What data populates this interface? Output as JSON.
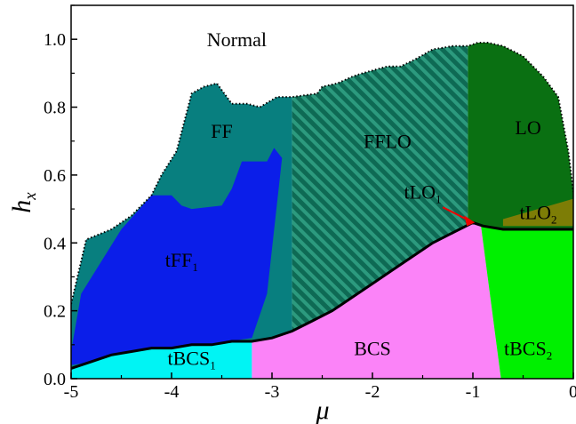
{
  "chart_data": {
    "type": "area",
    "title": "",
    "xlabel": "μ",
    "ylabel_main": "h",
    "ylabel_sub": "x",
    "xlim": [
      -5,
      0
    ],
    "ylim": [
      0,
      1.1
    ],
    "x_ticks": [
      -5,
      -4,
      -3,
      -2,
      -1,
      0
    ],
    "x_tick_labels": [
      "-5",
      "-4",
      "-3",
      "-2",
      "-1",
      "0"
    ],
    "y_ticks": [
      0,
      0.2,
      0.4,
      0.6,
      0.8,
      1.0
    ],
    "y_tick_labels": [
      "0.0",
      "0.2",
      "0.4",
      "0.6",
      "0.8",
      "1.0"
    ],
    "grid": false,
    "colors": {
      "FF": "#087f7f",
      "FFLO_fill": "#0e6a54",
      "FFLO_hatch": "#2c9a7e",
      "LO": "#0a7012",
      "tLO2": "#7d7d06",
      "tFF1": "#0b1ee9",
      "tBCS1": "#00f4f4",
      "BCS": "#fb83f8",
      "tBCS2": "#00f000",
      "tLO1_marker": "#ee0000",
      "boundary": "#000000"
    },
    "upper_boundary": {
      "style": "dotted",
      "x": [
        -5.0,
        -4.85,
        -4.6,
        -4.4,
        -4.2,
        -4.1,
        -3.95,
        -3.8,
        -3.68,
        -3.55,
        -3.4,
        -3.25,
        -3.12,
        -2.95,
        -2.8,
        -2.55,
        -2.5,
        -2.35,
        -2.2,
        -2.1,
        -1.85,
        -1.72,
        -1.58,
        -1.4,
        -1.2,
        -1.05,
        -0.95,
        -0.85,
        -0.7,
        -0.5,
        -0.3,
        -0.15,
        -0.05,
        0.0
      ],
      "y": [
        0.22,
        0.41,
        0.44,
        0.48,
        0.54,
        0.6,
        0.67,
        0.84,
        0.86,
        0.87,
        0.81,
        0.81,
        0.8,
        0.83,
        0.83,
        0.84,
        0.86,
        0.87,
        0.89,
        0.9,
        0.92,
        0.92,
        0.94,
        0.97,
        0.98,
        0.98,
        0.99,
        0.99,
        0.98,
        0.95,
        0.89,
        0.83,
        0.67,
        0.55
      ]
    },
    "lower_boundary": {
      "style": "solid",
      "x": [
        -5.0,
        -4.8,
        -4.6,
        -4.4,
        -4.2,
        -4.0,
        -3.8,
        -3.6,
        -3.4,
        -3.2,
        -3.0,
        -2.8,
        -2.6,
        -2.4,
        -2.2,
        -2.0,
        -1.8,
        -1.6,
        -1.4,
        -1.2,
        -1.0,
        -0.9,
        -0.7,
        -0.4,
        -0.2,
        0.0
      ],
      "y": [
        0.03,
        0.05,
        0.07,
        0.08,
        0.09,
        0.09,
        0.1,
        0.1,
        0.11,
        0.11,
        0.12,
        0.14,
        0.17,
        0.2,
        0.24,
        0.28,
        0.32,
        0.36,
        0.4,
        0.43,
        0.46,
        0.45,
        0.44,
        0.44,
        0.44,
        0.44
      ]
    },
    "regions": [
      {
        "label": "FF",
        "x": [
          -5.0,
          -2.8
        ]
      },
      {
        "label": "FFLO",
        "hatched": true,
        "x": [
          -2.8,
          -1.05
        ]
      },
      {
        "label": "LO",
        "x": [
          -1.05,
          0.0
        ]
      },
      {
        "label": "tLO",
        "sub": "2",
        "x": [
          -0.7,
          0.0,
          0.0,
          -0.7
        ],
        "y": [
          0.47,
          0.53,
          0.45,
          0.45
        ]
      },
      {
        "label": "tFF",
        "sub": "1",
        "x": [
          -5.0,
          -4.9,
          -4.5,
          -4.35,
          -4.2,
          -4.0,
          -3.9,
          -3.8,
          -3.5,
          -3.4,
          -3.3,
          -3.05,
          -2.98,
          -2.9,
          -3.05,
          -3.2,
          -5.0
        ],
        "y": [
          0.08,
          0.25,
          0.44,
          0.49,
          0.54,
          0.54,
          0.51,
          0.5,
          0.51,
          0.56,
          0.64,
          0.64,
          0.68,
          0.65,
          0.25,
          0.12,
          0.04
        ]
      },
      {
        "label": "tBCS",
        "sub": "1",
        "x": [
          -5.0,
          -3.2
        ]
      },
      {
        "label": "BCS",
        "x": [
          -3.2,
          -0.72
        ]
      },
      {
        "label": "tBCS",
        "sub": "2",
        "x": [
          -0.88,
          0.0
        ]
      }
    ],
    "annotations": [
      {
        "text": "Normal",
        "x": -3.35,
        "y": 0.98
      },
      {
        "text": "tLO",
        "sub": "1",
        "x": -1.5,
        "y": 0.53,
        "arrow_to": {
          "x": -0.98,
          "y": 0.46
        }
      }
    ]
  }
}
